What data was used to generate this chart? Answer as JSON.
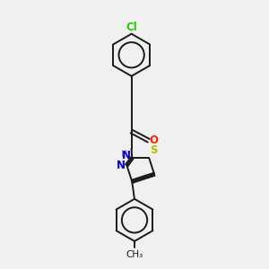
{
  "bg_color": "#f0f0f0",
  "bond_color": "#1a1a1a",
  "atoms": {
    "Cl": {
      "color": "#22cc00"
    },
    "O": {
      "color": "#ff2200"
    },
    "N": {
      "color": "#0000ee"
    },
    "S": {
      "color": "#bbbb00"
    },
    "H": {
      "color": "#888888"
    },
    "C": {
      "color": "#1a1a1a"
    }
  },
  "lw": 1.4,
  "fs": 8.5
}
